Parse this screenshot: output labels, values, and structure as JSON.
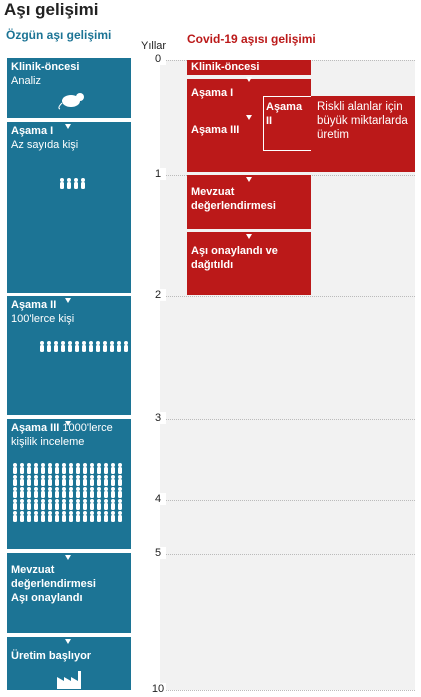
{
  "title": "Aşı gelişimi",
  "axis": {
    "label": "Yıllar",
    "ticks": [
      0,
      1,
      2,
      3,
      4,
      5,
      10
    ]
  },
  "left": {
    "heading": "Özgün aşı gelişimi",
    "blocks": [
      {
        "label": "Klinik-öncesi",
        "text": "Analiz"
      },
      {
        "label": "Aşama I",
        "text": "Az sayıda kişi"
      },
      {
        "label": "Aşama II",
        "text": "100'lerce kişi"
      },
      {
        "label": "Aşama III",
        "text": "1000'lerce kişilik inceleme"
      },
      {
        "label": "Mevzuat değerlendirmesi",
        "text": "Aşı onaylandı"
      },
      {
        "label": "Üretim başlıyor"
      }
    ]
  },
  "right": {
    "heading": "Covid-19 aşısı gelişimi",
    "blocks": [
      {
        "label": "Klinik-öncesi"
      },
      {
        "label": "Aşama I"
      },
      {
        "label": "Aşama II"
      },
      {
        "label": "Aşama III"
      },
      {
        "label": "Riskli alanlar için büyük miktarlarda üretim"
      },
      {
        "label": "Mevzuat değerlendirmesi"
      },
      {
        "label": "Aşı onaylandı ve dağıtıldı"
      }
    ]
  }
}
